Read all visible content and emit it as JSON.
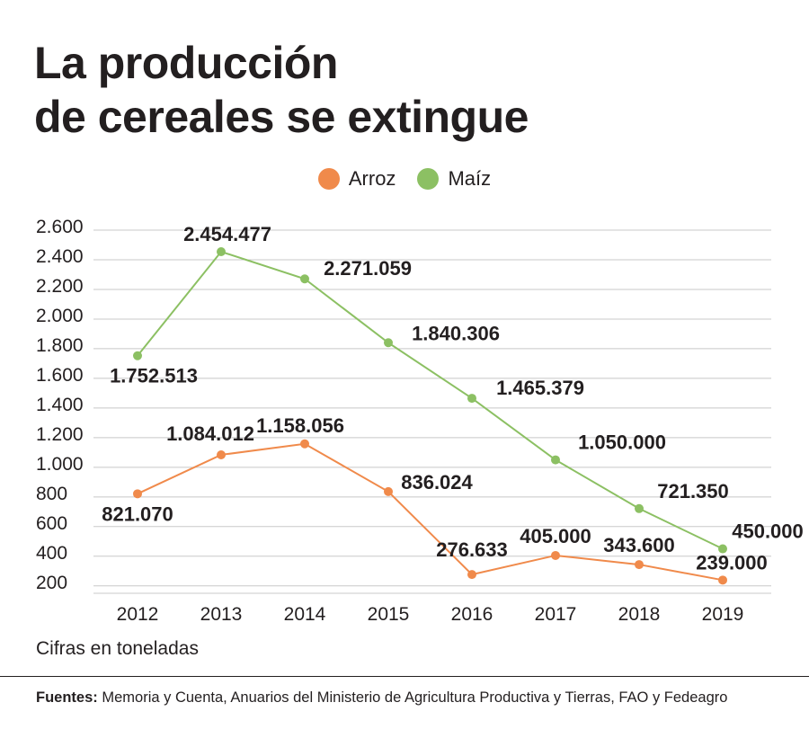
{
  "title_line1": "La producción",
  "title_line2": "de cereales se extingue",
  "note": "Cifras en toneladas",
  "source_label": "Fuentes:",
  "source_text": "Memoria y Cuenta, Anuarios del Ministerio de Agricultura Productiva y Tierras, FAO y Fedeagro",
  "chart_data": {
    "type": "line",
    "x": [
      "2012",
      "2013",
      "2014",
      "2015",
      "2016",
      "2017",
      "2018",
      "2019"
    ],
    "ylim": [
      150,
      2600
    ],
    "yticks": [
      200,
      400,
      600,
      800,
      1000,
      1200,
      1400,
      1600,
      1800,
      2000,
      2200,
      2400,
      2600
    ],
    "ytick_labels": [
      "200",
      "400",
      "600",
      "800",
      "1.000",
      "1.200",
      "1.400",
      "1.600",
      "1.800",
      "2.000",
      "2.200",
      "2.400",
      "2.600"
    ],
    "grid": true,
    "legend": "top-center",
    "series": [
      {
        "name": "Arroz",
        "color": "#f08a4b",
        "values": [
          821.07,
          1084.012,
          1158.056,
          836.024,
          276.633,
          405.0,
          343.6,
          239.0
        ],
        "labels": [
          "821.070",
          "1.084.012",
          "1.158.056",
          "836.024",
          "276.633",
          "405.000",
          "343.600",
          "239.000"
        ]
      },
      {
        "name": "Maíz",
        "color": "#8cc063",
        "values": [
          1752.513,
          2454.477,
          2271.059,
          1840.306,
          1465.379,
          1050.0,
          721.35,
          450.0
        ],
        "labels": [
          "1.752.513",
          "2.454.477",
          "2.271.059",
          "1.840.306",
          "1.465.379",
          "1.050.000",
          "721.350",
          "450.000"
        ]
      }
    ]
  }
}
